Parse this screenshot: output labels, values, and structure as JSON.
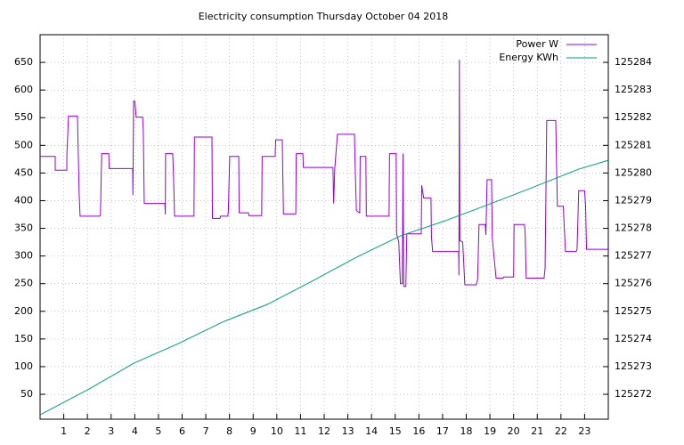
{
  "chart_data": {
    "type": "line",
    "title": "Electricity consumption Thursday October 04 2018",
    "xlim": [
      0,
      24
    ],
    "xticks": [
      1,
      2,
      3,
      4,
      5,
      6,
      7,
      8,
      9,
      10,
      11,
      12,
      13,
      14,
      15,
      16,
      17,
      18,
      19,
      20,
      21,
      22,
      23
    ],
    "ylim": [
      5,
      700
    ],
    "yticks": [
      50,
      100,
      150,
      200,
      250,
      300,
      350,
      400,
      450,
      500,
      550,
      600,
      650
    ],
    "y2lim": [
      125271.1,
      125285
    ],
    "y2ticks": [
      125272,
      125273,
      125274,
      125275,
      125276,
      125277,
      125278,
      125279,
      125280,
      125281,
      125282,
      125283,
      125284
    ],
    "grid": true,
    "legend": "top-right",
    "series": [
      {
        "name": "Power W",
        "color": "#9400d3",
        "x": [
          0,
          0.64,
          0.64,
          1.13,
          1.13,
          1.2,
          1.58,
          1.6,
          1.65,
          1.69,
          2.52,
          2.55,
          2.6,
          2.9,
          2.92,
          3.91,
          3.92,
          3.95,
          4.0,
          4.06,
          4.33,
          4.36,
          4.4,
          5.27,
          5.29,
          5.3,
          5.6,
          5.63,
          5.68,
          6.5,
          6.52,
          7.26,
          7.28,
          7.6,
          7.62,
          7.93,
          7.95,
          8.01,
          8.39,
          8.41,
          8.8,
          8.82,
          9.36,
          9.38,
          9.93,
          9.95,
          10.23,
          10.25,
          10.28,
          10.8,
          10.82,
          11.1,
          11.12,
          12.37,
          12.4,
          12.45,
          12.56,
          13.28,
          13.3,
          13.36,
          13.5,
          13.52,
          13.76,
          13.78,
          14.74,
          14.76,
          15.04,
          15.06,
          15.15,
          15.22,
          15.3,
          15.33,
          15.36,
          15.45,
          15.49,
          16.1,
          16.12,
          16.2,
          16.51,
          16.53,
          16.58,
          17.68,
          17.69,
          17.71,
          17.73,
          17.85,
          17.94,
          18.43,
          18.48,
          18.54,
          18.8,
          18.83,
          18.88,
          19.07,
          19.1,
          19.26,
          19.56,
          19.58,
          20.0,
          20.02,
          20.46,
          20.49,
          20.53,
          21.29,
          21.33,
          21.4,
          21.78,
          21.81,
          21.85,
          22.1,
          22.19,
          22.64,
          22.68,
          22.75,
          23.0,
          23.04,
          23.08,
          24
        ],
        "values": [
          480,
          480,
          455,
          455,
          480,
          553,
          553,
          510,
          413,
          372,
          372,
          375,
          485,
          485,
          458,
          458,
          410,
          580,
          580,
          551,
          551,
          525,
          395,
          395,
          375,
          485,
          485,
          455,
          372,
          372,
          515,
          515,
          368,
          368,
          372,
          372,
          380,
          480,
          480,
          378,
          378,
          373,
          373,
          480,
          480,
          510,
          510,
          455,
          376,
          376,
          485,
          485,
          460,
          460,
          395,
          460,
          520,
          520,
          475,
          382,
          378,
          480,
          480,
          372,
          372,
          485,
          485,
          340,
          325,
          250,
          250,
          485,
          245,
          245,
          340,
          340,
          428,
          405,
          405,
          335,
          308,
          308,
          265,
          655,
          328,
          325,
          248,
          248,
          258,
          357,
          357,
          338,
          438,
          438,
          332,
          260,
          260,
          262,
          262,
          357,
          357,
          340,
          260,
          260,
          278,
          545,
          545,
          475,
          390,
          390,
          308,
          308,
          312,
          418,
          418,
          390,
          312,
          312
        ]
      },
      {
        "name": "Energy KWh",
        "color": "#009e73",
        "axis": "y2",
        "x": [
          0,
          2.07,
          3.95,
          5.83,
          7.7,
          9.6,
          11.47,
          13.35,
          15.23,
          17.1,
          19.0,
          20.87,
          22.75,
          24
        ],
        "values": [
          125271.26,
          125272.19,
          125273.12,
          125273.83,
          125274.61,
          125275.25,
          125276.08,
          125276.95,
          125277.73,
          125278.27,
          125278.88,
          125279.5,
          125280.14,
          125280.46
        ]
      }
    ]
  }
}
